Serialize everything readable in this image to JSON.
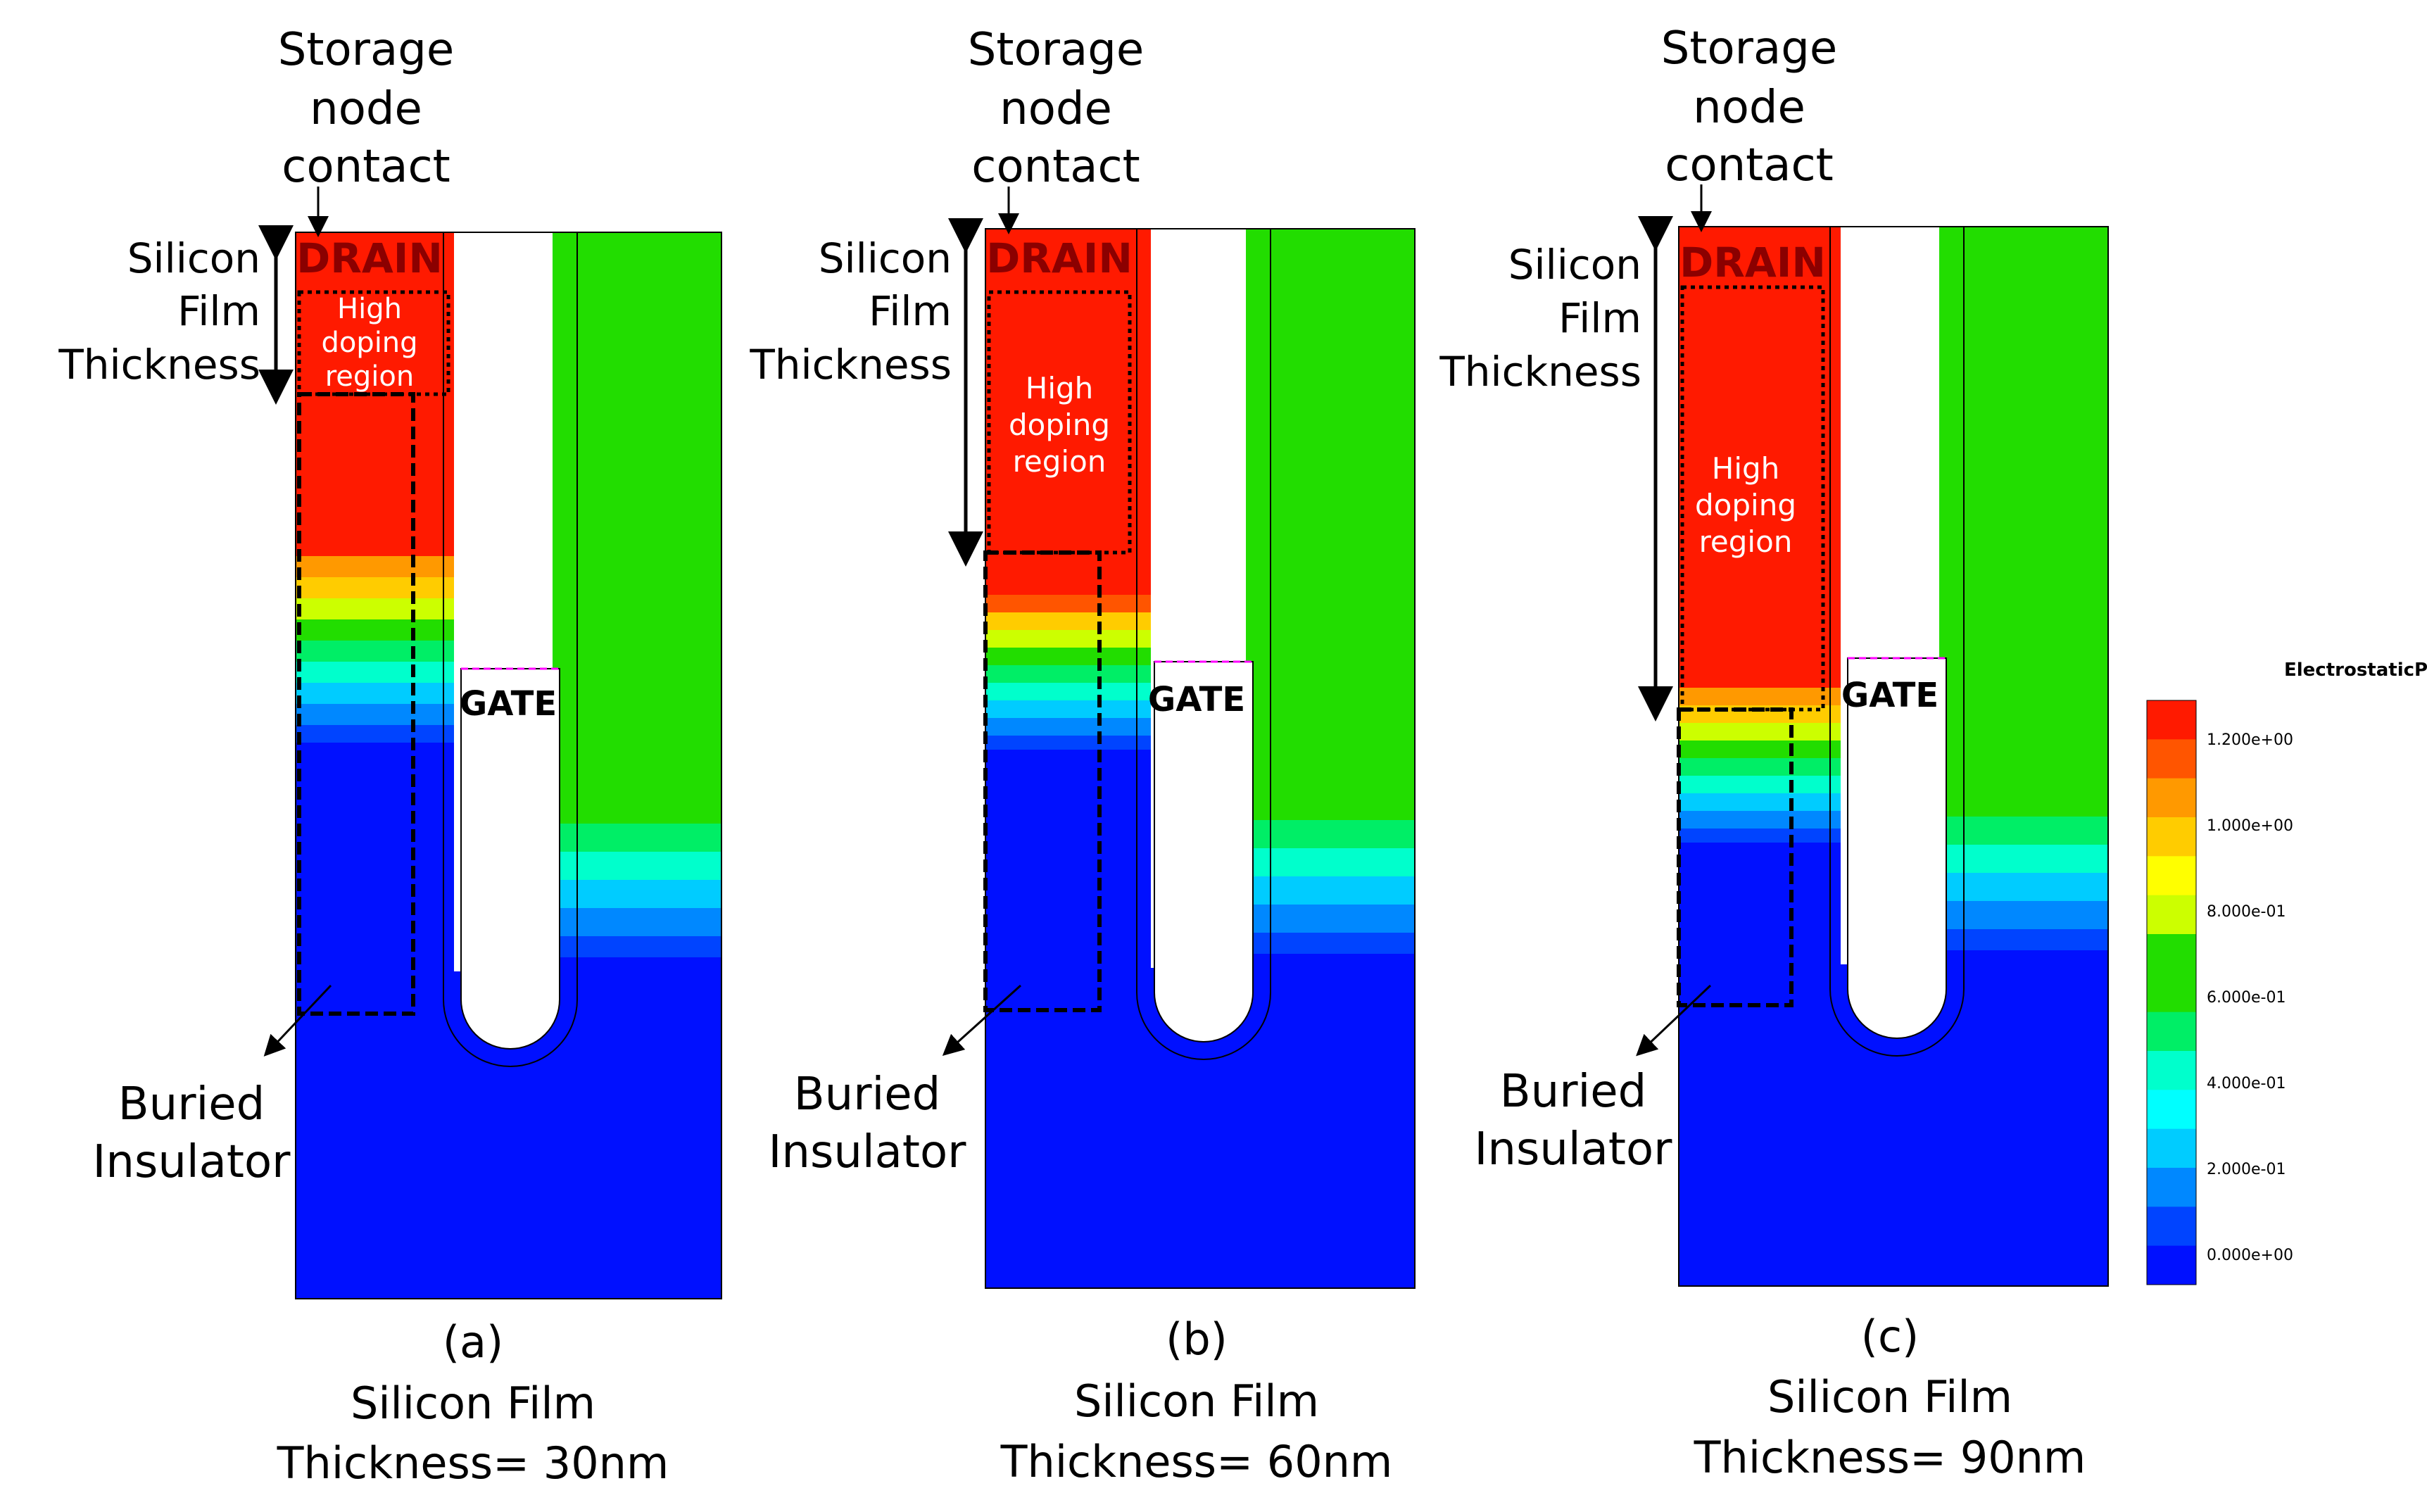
{
  "panels": [
    {
      "id": "a",
      "storage_node_label": [
        "Storage",
        "node",
        "contact"
      ],
      "film_label": [
        "Silicon",
        "Film",
        "Thickness"
      ],
      "drain_label": "DRAIN",
      "high_doping_label": [
        "High",
        "doping",
        "region"
      ],
      "gate_label": "GATE",
      "buried_label": [
        "Buried",
        "Insulator"
      ],
      "caption_letter": "(a)",
      "caption_line1": "Silicon Film",
      "caption_line2": "Thickness= 30nm",
      "film_thickness_nm": 30
    },
    {
      "id": "b",
      "storage_node_label": [
        "Storage",
        "node",
        "contact"
      ],
      "film_label": [
        "Silicon",
        "Film",
        "Thickness"
      ],
      "drain_label": "DRAIN",
      "high_doping_label": [
        "High",
        "doping",
        "region"
      ],
      "gate_label": "GATE",
      "buried_label": [
        "Buried",
        "Insulator"
      ],
      "caption_letter": "(b)",
      "caption_line1": "Silicon Film",
      "caption_line2": "Thickness= 60nm",
      "film_thickness_nm": 60
    },
    {
      "id": "c",
      "storage_node_label": [
        "Storage",
        "node",
        "contact"
      ],
      "film_label": [
        "Silicon",
        "Film",
        "Thickness"
      ],
      "drain_label": "DRAIN",
      "high_doping_label": [
        "High",
        "doping",
        "region"
      ],
      "gate_label": "GATE",
      "buried_label": [
        "Buried",
        "Insulator"
      ],
      "caption_letter": "(c)",
      "caption_line1": "Silicon Film",
      "caption_line2": "Thickness= 90nm",
      "film_thickness_nm": 90
    }
  ],
  "colorbar": {
    "title": "ElectrostaticPotential (V)",
    "tick_labels": [
      "1.200e+00",
      "1.000e+00",
      "8.000e-01",
      "6.000e-01",
      "4.000e-01",
      "2.000e-01",
      "0.000e+00"
    ],
    "colors": [
      "#ff1a00",
      "#ff5500",
      "#ff9900",
      "#ffcc00",
      "#ffff00",
      "#ccff00",
      "#22dd00",
      "#22dd00",
      "#00ee66",
      "#00ffcc",
      "#00ffff",
      "#00ccff",
      "#0088ff",
      "#0044ff",
      "#0010ff"
    ]
  },
  "colors": {
    "drain_red": "#ff1a00",
    "bulk_blue": "#0010ff",
    "node_green": "#22dd00",
    "gate_dash": "#ff00ff",
    "film_arrow": "#000000"
  }
}
